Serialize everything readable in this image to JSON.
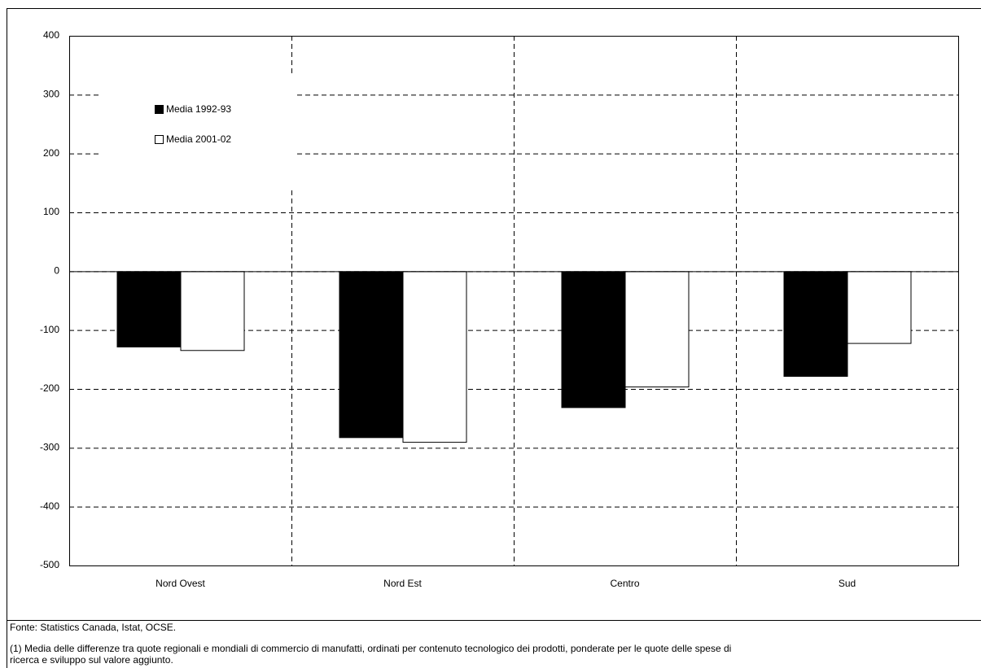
{
  "chart_data": {
    "type": "bar",
    "categories": [
      "Nord Ovest",
      "Nord Est",
      "Centro",
      "Sud"
    ],
    "series": [
      {
        "name": "Media 1992-93",
        "color": "#000000",
        "values": [
          -128,
          -282,
          -231,
          -178
        ]
      },
      {
        "name": "Media 2001-02",
        "color": "#ffffff",
        "values": [
          -134,
          -290,
          -196,
          -122
        ]
      }
    ],
    "ylim": [
      -500,
      400
    ],
    "yticks": [
      -500,
      -400,
      -300,
      -200,
      -100,
      0,
      100,
      200,
      300,
      400
    ],
    "grid": true,
    "legend": "upper-left",
    "source": "Fonte: Statistics Canada, Istat, OCSE.",
    "note": [
      "(1) Media delle differenze tra quote regionali e mondiali di commercio di manufatti, ordinati per contenuto tecnologico dei prodotti, ponderate per le quote delle spese di",
      "ricerca e sviluppo sul valore aggiunto."
    ]
  }
}
